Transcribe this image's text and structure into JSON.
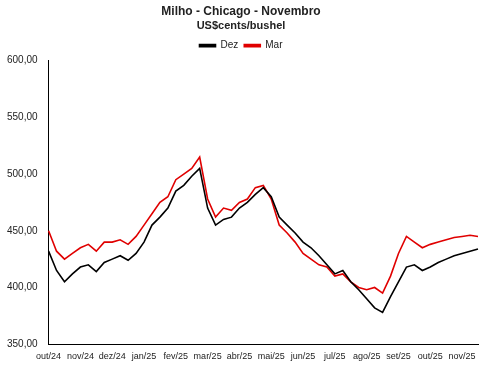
{
  "chart_data": {
    "type": "line",
    "title": "Milho - Chicago - Novembro",
    "subtitle": "US$cents/bushel",
    "categories": [
      "out/24",
      null,
      null,
      null,
      "nov/24",
      null,
      null,
      null,
      "dez/24",
      null,
      null,
      null,
      "jan/25",
      null,
      null,
      null,
      "fev/25",
      null,
      null,
      null,
      "mar/25",
      null,
      null,
      null,
      "abr/25",
      null,
      null,
      null,
      "mai/25",
      null,
      null,
      null,
      "jun/25",
      null,
      null,
      null,
      "jul/25",
      null,
      null,
      null,
      "ago/25",
      null,
      null,
      null,
      "set/25",
      null,
      null,
      null,
      "out/25",
      null,
      null,
      null,
      "nov/25",
      null,
      null
    ],
    "series": [
      {
        "name": "Dez",
        "color": "#000000",
        "values": [
          432,
          415,
          405,
          412,
          418,
          420,
          414,
          422,
          425,
          428,
          424,
          430,
          440,
          455,
          462,
          470,
          485,
          490,
          498,
          505,
          470,
          455,
          460,
          462,
          470,
          475,
          482,
          488,
          480,
          462,
          455,
          448,
          440,
          435,
          428,
          420,
          412,
          415,
          405,
          398,
          390,
          382,
          378,
          392,
          405,
          418,
          420,
          415,
          418,
          422,
          425,
          428,
          430,
          432,
          434
        ]
      },
      {
        "name": "Mar",
        "color": "#e00000",
        "values": [
          450,
          432,
          425,
          430,
          435,
          438,
          432,
          440,
          440,
          442,
          438,
          445,
          455,
          465,
          475,
          480,
          495,
          500,
          505,
          515,
          478,
          462,
          470,
          468,
          475,
          478,
          488,
          490,
          478,
          455,
          448,
          440,
          430,
          425,
          420,
          418,
          410,
          412,
          405,
          400,
          398,
          400,
          395,
          410,
          430,
          445,
          440,
          435,
          438,
          440,
          442,
          444,
          445,
          446,
          445
        ]
      }
    ],
    "ylim": [
      350,
      600
    ],
    "yticks": [
      {
        "value": 350,
        "label": "350,00"
      },
      {
        "value": 400,
        "label": "400,00"
      },
      {
        "value": 450,
        "label": "450,00"
      },
      {
        "value": 500,
        "label": "500,00"
      },
      {
        "value": 550,
        "label": "550,00"
      },
      {
        "value": 600,
        "label": "600,00"
      }
    ],
    "grid": false,
    "legend": "top"
  }
}
